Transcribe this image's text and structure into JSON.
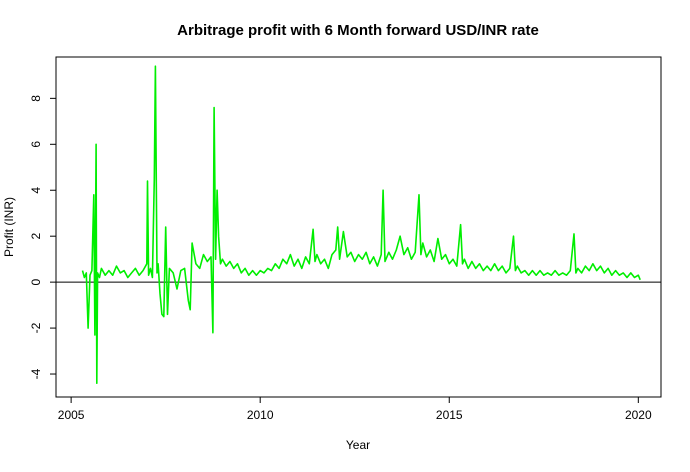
{
  "chart_data": {
    "type": "line",
    "title": "Arbitrage profit with 6 Month forward USD/INR rate",
    "xlabel": "Year",
    "ylabel": "Profit (INR)",
    "xlim": [
      2004.6,
      2020.6
    ],
    "ylim": [
      -5.0,
      9.8
    ],
    "x_ticks": [
      2005,
      2010,
      2015,
      2020
    ],
    "x_tick_labels": [
      "2005",
      "2010",
      "2015",
      "2020"
    ],
    "y_ticks": [
      -4,
      -2,
      0,
      2,
      4,
      6,
      8
    ],
    "y_tick_labels": [
      "-4",
      "-2",
      "0",
      "2",
      "4",
      "6",
      "8"
    ],
    "reference_line": {
      "y": 0,
      "color": "#000000"
    },
    "grid": false,
    "legend": "none",
    "series": [
      {
        "color": "#00ee00",
        "points": [
          [
            2005.3,
            0.5
          ],
          [
            2005.35,
            0.2
          ],
          [
            2005.4,
            0.4
          ],
          [
            2005.45,
            -2.0
          ],
          [
            2005.5,
            0.3
          ],
          [
            2005.55,
            0.5
          ],
          [
            2005.6,
            3.8
          ],
          [
            2005.63,
            -2.3
          ],
          [
            2005.66,
            6.0
          ],
          [
            2005.68,
            -4.4
          ],
          [
            2005.7,
            0.4
          ],
          [
            2005.75,
            0.2
          ],
          [
            2005.8,
            0.6
          ],
          [
            2005.9,
            0.3
          ],
          [
            2006.0,
            0.5
          ],
          [
            2006.1,
            0.3
          ],
          [
            2006.2,
            0.7
          ],
          [
            2006.3,
            0.4
          ],
          [
            2006.4,
            0.5
          ],
          [
            2006.5,
            0.2
          ],
          [
            2006.6,
            0.4
          ],
          [
            2006.7,
            0.6
          ],
          [
            2006.8,
            0.3
          ],
          [
            2006.9,
            0.5
          ],
          [
            2007.0,
            0.8
          ],
          [
            2007.02,
            4.4
          ],
          [
            2007.05,
            0.3
          ],
          [
            2007.1,
            0.6
          ],
          [
            2007.15,
            0.2
          ],
          [
            2007.2,
            4.5
          ],
          [
            2007.23,
            9.4
          ],
          [
            2007.27,
            0.4
          ],
          [
            2007.3,
            0.8
          ],
          [
            2007.35,
            -0.5
          ],
          [
            2007.4,
            -1.4
          ],
          [
            2007.45,
            -1.5
          ],
          [
            2007.5,
            2.4
          ],
          [
            2007.55,
            -1.4
          ],
          [
            2007.6,
            0.6
          ],
          [
            2007.7,
            0.4
          ],
          [
            2007.8,
            -0.3
          ],
          [
            2007.9,
            0.5
          ],
          [
            2008.0,
            0.6
          ],
          [
            2008.1,
            -0.8
          ],
          [
            2008.15,
            -1.2
          ],
          [
            2008.2,
            1.7
          ],
          [
            2008.3,
            0.8
          ],
          [
            2008.4,
            0.6
          ],
          [
            2008.5,
            1.2
          ],
          [
            2008.6,
            0.9
          ],
          [
            2008.7,
            1.1
          ],
          [
            2008.75,
            -2.2
          ],
          [
            2008.78,
            7.6
          ],
          [
            2008.82,
            1.0
          ],
          [
            2008.86,
            4.0
          ],
          [
            2008.9,
            2.0
          ],
          [
            2008.95,
            0.8
          ],
          [
            2009.0,
            1.0
          ],
          [
            2009.1,
            0.7
          ],
          [
            2009.2,
            0.9
          ],
          [
            2009.3,
            0.6
          ],
          [
            2009.4,
            0.8
          ],
          [
            2009.5,
            0.4
          ],
          [
            2009.6,
            0.6
          ],
          [
            2009.7,
            0.3
          ],
          [
            2009.8,
            0.5
          ],
          [
            2009.9,
            0.3
          ],
          [
            2010.0,
            0.5
          ],
          [
            2010.1,
            0.4
          ],
          [
            2010.2,
            0.6
          ],
          [
            2010.3,
            0.5
          ],
          [
            2010.4,
            0.8
          ],
          [
            2010.5,
            0.6
          ],
          [
            2010.6,
            1.0
          ],
          [
            2010.7,
            0.8
          ],
          [
            2010.8,
            1.2
          ],
          [
            2010.9,
            0.7
          ],
          [
            2011.0,
            1.0
          ],
          [
            2011.1,
            0.6
          ],
          [
            2011.2,
            1.1
          ],
          [
            2011.3,
            0.8
          ],
          [
            2011.4,
            2.3
          ],
          [
            2011.45,
            0.9
          ],
          [
            2011.5,
            1.2
          ],
          [
            2011.6,
            0.8
          ],
          [
            2011.7,
            1.0
          ],
          [
            2011.8,
            0.6
          ],
          [
            2011.9,
            1.2
          ],
          [
            2012.0,
            1.4
          ],
          [
            2012.05,
            2.4
          ],
          [
            2012.1,
            1.0
          ],
          [
            2012.2,
            2.2
          ],
          [
            2012.3,
            1.1
          ],
          [
            2012.4,
            1.3
          ],
          [
            2012.5,
            0.9
          ],
          [
            2012.6,
            1.2
          ],
          [
            2012.7,
            1.0
          ],
          [
            2012.8,
            1.3
          ],
          [
            2012.9,
            0.8
          ],
          [
            2013.0,
            1.1
          ],
          [
            2013.1,
            0.7
          ],
          [
            2013.2,
            1.2
          ],
          [
            2013.25,
            4.0
          ],
          [
            2013.3,
            0.9
          ],
          [
            2013.4,
            1.3
          ],
          [
            2013.5,
            1.0
          ],
          [
            2013.6,
            1.4
          ],
          [
            2013.7,
            2.0
          ],
          [
            2013.8,
            1.2
          ],
          [
            2013.9,
            1.5
          ],
          [
            2014.0,
            1.0
          ],
          [
            2014.1,
            1.3
          ],
          [
            2014.2,
            3.8
          ],
          [
            2014.25,
            1.2
          ],
          [
            2014.3,
            1.7
          ],
          [
            2014.4,
            1.1
          ],
          [
            2014.5,
            1.4
          ],
          [
            2014.6,
            0.9
          ],
          [
            2014.7,
            1.9
          ],
          [
            2014.8,
            1.0
          ],
          [
            2014.9,
            1.2
          ],
          [
            2015.0,
            0.8
          ],
          [
            2015.1,
            1.0
          ],
          [
            2015.2,
            0.7
          ],
          [
            2015.3,
            2.5
          ],
          [
            2015.35,
            0.8
          ],
          [
            2015.4,
            1.0
          ],
          [
            2015.5,
            0.6
          ],
          [
            2015.6,
            0.9
          ],
          [
            2015.7,
            0.6
          ],
          [
            2015.8,
            0.8
          ],
          [
            2015.9,
            0.5
          ],
          [
            2016.0,
            0.7
          ],
          [
            2016.1,
            0.5
          ],
          [
            2016.2,
            0.8
          ],
          [
            2016.3,
            0.5
          ],
          [
            2016.4,
            0.7
          ],
          [
            2016.5,
            0.4
          ],
          [
            2016.6,
            0.6
          ],
          [
            2016.7,
            2.0
          ],
          [
            2016.75,
            0.5
          ],
          [
            2016.8,
            0.7
          ],
          [
            2016.9,
            0.4
          ],
          [
            2017.0,
            0.5
          ],
          [
            2017.1,
            0.3
          ],
          [
            2017.2,
            0.5
          ],
          [
            2017.3,
            0.3
          ],
          [
            2017.4,
            0.5
          ],
          [
            2017.5,
            0.3
          ],
          [
            2017.6,
            0.4
          ],
          [
            2017.7,
            0.3
          ],
          [
            2017.8,
            0.5
          ],
          [
            2017.9,
            0.3
          ],
          [
            2018.0,
            0.4
          ],
          [
            2018.1,
            0.3
          ],
          [
            2018.2,
            0.5
          ],
          [
            2018.3,
            2.1
          ],
          [
            2018.35,
            0.4
          ],
          [
            2018.4,
            0.6
          ],
          [
            2018.5,
            0.4
          ],
          [
            2018.6,
            0.7
          ],
          [
            2018.7,
            0.5
          ],
          [
            2018.8,
            0.8
          ],
          [
            2018.9,
            0.5
          ],
          [
            2019.0,
            0.7
          ],
          [
            2019.1,
            0.4
          ],
          [
            2019.2,
            0.6
          ],
          [
            2019.3,
            0.3
          ],
          [
            2019.4,
            0.5
          ],
          [
            2019.5,
            0.3
          ],
          [
            2019.6,
            0.4
          ],
          [
            2019.7,
            0.2
          ],
          [
            2019.8,
            0.4
          ],
          [
            2019.9,
            0.2
          ],
          [
            2020.0,
            0.3
          ],
          [
            2020.05,
            0.1
          ]
        ]
      }
    ]
  }
}
